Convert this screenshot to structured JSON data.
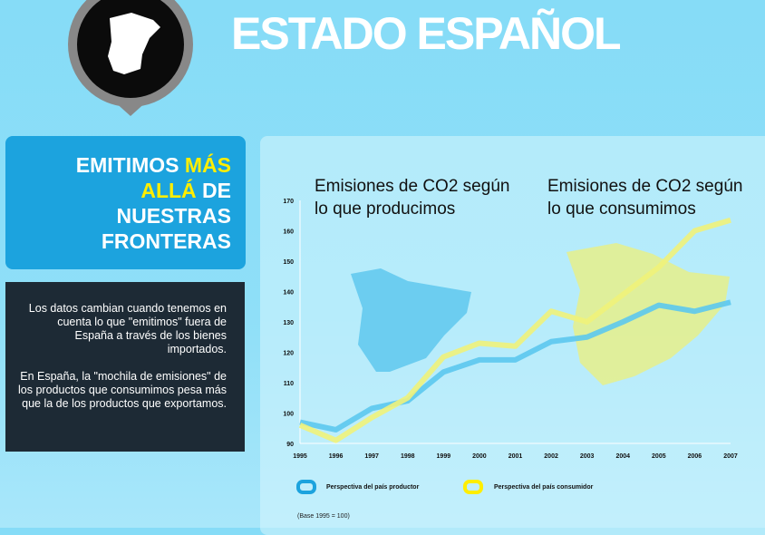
{
  "header": {
    "title": "ESTADO ESPAÑOL",
    "pin_icon": "spain-map-pin-icon"
  },
  "headline": {
    "part1": "EMITIMOS ",
    "highlight1": "MÁS",
    "highlight2": "ALLÁ",
    "part2": " DE",
    "line3": "NUESTRAS",
    "line4": "FRONTERAS"
  },
  "body": {
    "p1": "Los datos cambian cuando tenemos en cuenta lo que \"emitimos\" fuera de España a través de los bienes importados.",
    "p2": "En España, la \"mochila de emisiones\" de los productos que consumimos pesa más que la de los productos que exportamos."
  },
  "chart_data": {
    "type": "line",
    "annotations": [
      "Emisiones de CO2 según lo que producimos",
      "Emisiones de CO2 según lo que consumimos"
    ],
    "x": [
      "1995",
      "1996",
      "1997",
      "1998",
      "1999",
      "2000",
      "2001",
      "2002",
      "2003",
      "2004",
      "2005",
      "2006",
      "2007"
    ],
    "yticks": [
      90,
      100,
      110,
      120,
      130,
      140,
      150,
      160,
      170
    ],
    "ylim": [
      90,
      170
    ],
    "series": [
      {
        "name": "Perspectiva del país productor",
        "color": "#5cc8ee",
        "values": [
          97,
          94.5,
          101.5,
          104,
          113.5,
          117.5,
          117.5,
          123.5,
          125,
          130,
          135.5,
          133.5,
          136.5
        ]
      },
      {
        "name": "Perspectiva del país consumidor",
        "color": "#f0f27a",
        "values": [
          96,
          91,
          98.5,
          105,
          118.5,
          123,
          122,
          133.5,
          130,
          139,
          148,
          160,
          163.5
        ]
      }
    ],
    "note": "(Base 1995 = 100)",
    "legend": "bottom"
  }
}
